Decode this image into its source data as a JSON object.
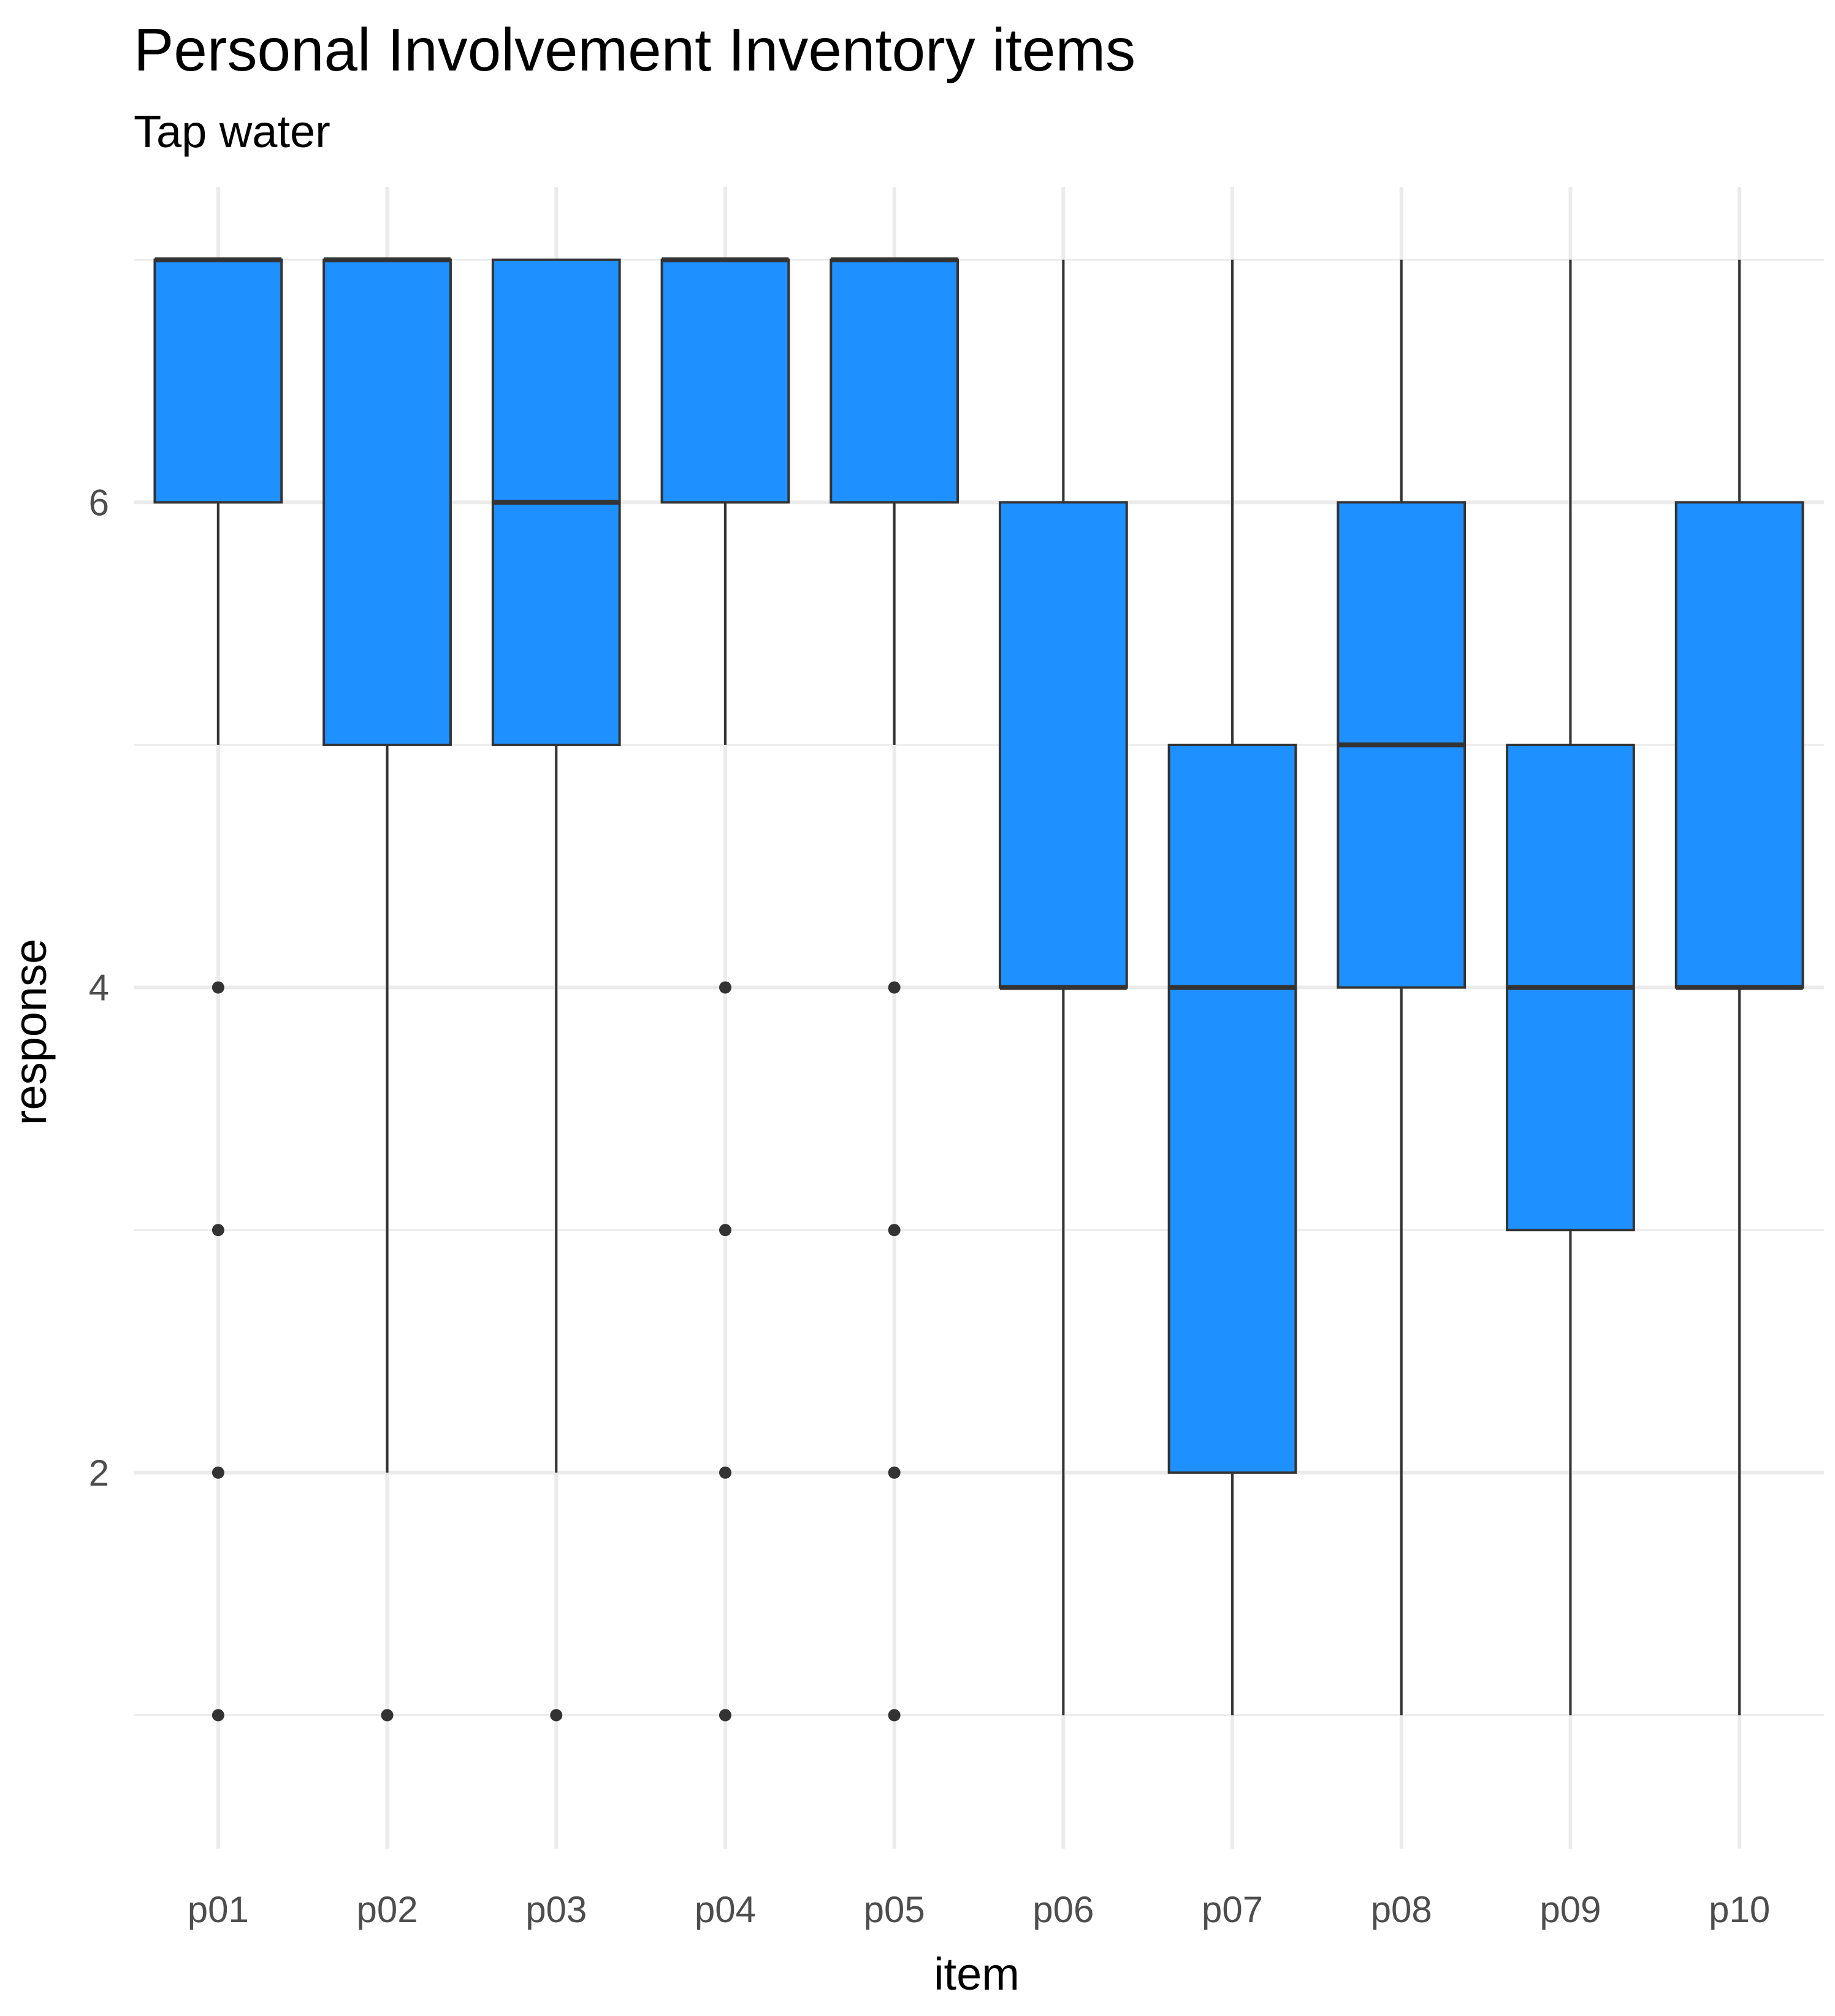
{
  "chart_data": {
    "type": "boxplot",
    "title": "Personal Involvement Inventory items",
    "subtitle": "Tap water",
    "xlabel": "item",
    "ylabel": "response",
    "categories": [
      "p01",
      "p02",
      "p03",
      "p04",
      "p05",
      "p06",
      "p07",
      "p08",
      "p09",
      "p10"
    ],
    "ylim": [
      0.45,
      7.3
    ],
    "yticks": [
      2,
      4,
      6
    ],
    "grid": true,
    "fill_color": "#1E90FF",
    "outline_color": "#333333",
    "boxes": [
      {
        "item": "p01",
        "lower_whisker": 5,
        "q1": 6,
        "median": 7,
        "q3": 7,
        "upper_whisker": 7,
        "outliers": [
          1,
          2,
          3,
          4
        ]
      },
      {
        "item": "p02",
        "lower_whisker": 2,
        "q1": 5,
        "median": 7,
        "q3": 7,
        "upper_whisker": 7,
        "outliers": [
          1
        ]
      },
      {
        "item": "p03",
        "lower_whisker": 2,
        "q1": 5,
        "median": 6,
        "q3": 7,
        "upper_whisker": 7,
        "outliers": [
          1
        ]
      },
      {
        "item": "p04",
        "lower_whisker": 5,
        "q1": 6,
        "median": 7,
        "q3": 7,
        "upper_whisker": 7,
        "outliers": [
          1,
          2,
          3,
          4
        ]
      },
      {
        "item": "p05",
        "lower_whisker": 5,
        "q1": 6,
        "median": 7,
        "q3": 7,
        "upper_whisker": 7,
        "outliers": [
          1,
          2,
          3,
          4
        ]
      },
      {
        "item": "p06",
        "lower_whisker": 1,
        "q1": 4,
        "median": 4,
        "q3": 6,
        "upper_whisker": 7,
        "outliers": []
      },
      {
        "item": "p07",
        "lower_whisker": 1,
        "q1": 2,
        "median": 4,
        "q3": 5,
        "upper_whisker": 7,
        "outliers": []
      },
      {
        "item": "p08",
        "lower_whisker": 1,
        "q1": 4,
        "median": 5,
        "q3": 6,
        "upper_whisker": 7,
        "outliers": []
      },
      {
        "item": "p09",
        "lower_whisker": 1,
        "q1": 3,
        "median": 4,
        "q3": 5,
        "upper_whisker": 7,
        "outliers": []
      },
      {
        "item": "p10",
        "lower_whisker": 1,
        "q1": 4,
        "median": 4,
        "q3": 6,
        "upper_whisker": 7,
        "outliers": []
      }
    ]
  }
}
